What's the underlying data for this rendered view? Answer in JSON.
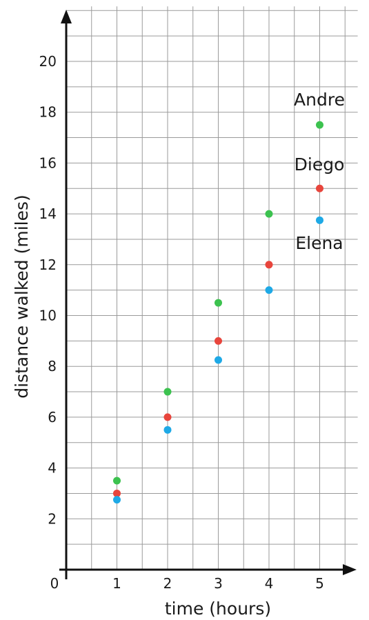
{
  "chart_data": {
    "type": "scatter",
    "xlabel": "time (hours)",
    "ylabel": "distance walked (miles)",
    "origin_label": "0",
    "xlim": [
      0,
      5.75
    ],
    "ylim": [
      0,
      22
    ],
    "x_minor_step": 0.5,
    "y_minor_step": 1,
    "x_ticks": [
      1,
      2,
      3,
      4,
      5
    ],
    "y_ticks": [
      2,
      4,
      6,
      8,
      10,
      12,
      14,
      16,
      18,
      20
    ],
    "grid": true,
    "series": [
      {
        "name": "Andre",
        "color": "#3cc24f",
        "points": [
          [
            1,
            3.5
          ],
          [
            2,
            7
          ],
          [
            3,
            10.5
          ],
          [
            4,
            14
          ],
          [
            5,
            17.5
          ]
        ]
      },
      {
        "name": "Diego",
        "color": "#e8453c",
        "points": [
          [
            1,
            3
          ],
          [
            2,
            6
          ],
          [
            3,
            9
          ],
          [
            4,
            12
          ],
          [
            5,
            15
          ]
        ]
      },
      {
        "name": "Elena",
        "color": "#1ea9e6",
        "points": [
          [
            1,
            2.75
          ],
          [
            2,
            5.5
          ],
          [
            3,
            8.25
          ],
          [
            4,
            11
          ],
          [
            5,
            13.75
          ]
        ]
      }
    ]
  }
}
